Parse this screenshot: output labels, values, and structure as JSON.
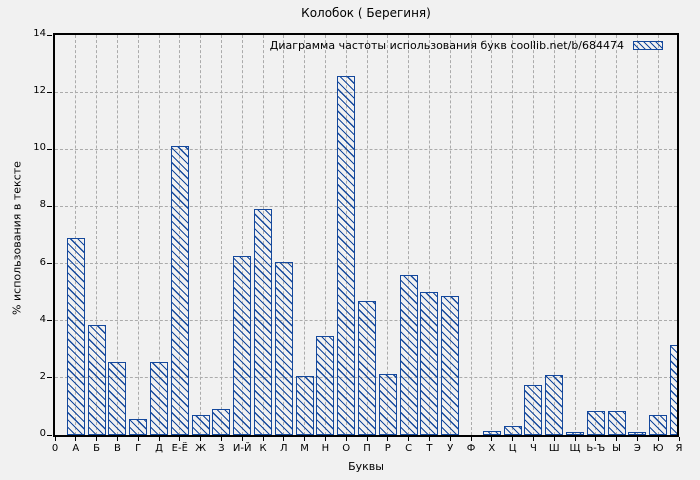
{
  "chart_data": {
    "type": "bar",
    "title": "Колобок ( Берегиня)",
    "legend": "Диаграмма частоты использования букв coollib.net/b/684474",
    "xlabel": "Буквы",
    "ylabel": "% использования в тексте",
    "ylim": [
      0,
      14
    ],
    "yticks": [
      0,
      2,
      4,
      6,
      8,
      10,
      12,
      14
    ],
    "grid": true,
    "legend_position": "top-right-inside",
    "hatch": "diagonal-backslash",
    "categories": [
      "0",
      "А",
      "Б",
      "В",
      "Г",
      "Д",
      "Е-Ё",
      "Ж",
      "З",
      "И-Й",
      "К",
      "Л",
      "М",
      "Н",
      "О",
      "П",
      "Р",
      "С",
      "Т",
      "У",
      "Ф",
      "Х",
      "Ц",
      "Ч",
      "Ш",
      "Щ",
      "Ь-Ъ",
      "Ы",
      "Э",
      "Ю",
      "Я"
    ],
    "values": [
      0,
      6.9,
      3.85,
      2.55,
      0.55,
      2.55,
      10.1,
      0.7,
      0.9,
      6.25,
      7.9,
      6.05,
      2.05,
      3.45,
      12.55,
      4.7,
      2.15,
      5.6,
      5.0,
      4.85,
      0,
      0.15,
      0.3,
      1.75,
      2.1,
      0.1,
      0.85,
      0.85,
      0.12,
      0.7,
      3.15
    ],
    "colors": {
      "bar": "#14489c",
      "grid": "#ababab",
      "axis": "#000000",
      "background": "#f1f1f1"
    }
  }
}
